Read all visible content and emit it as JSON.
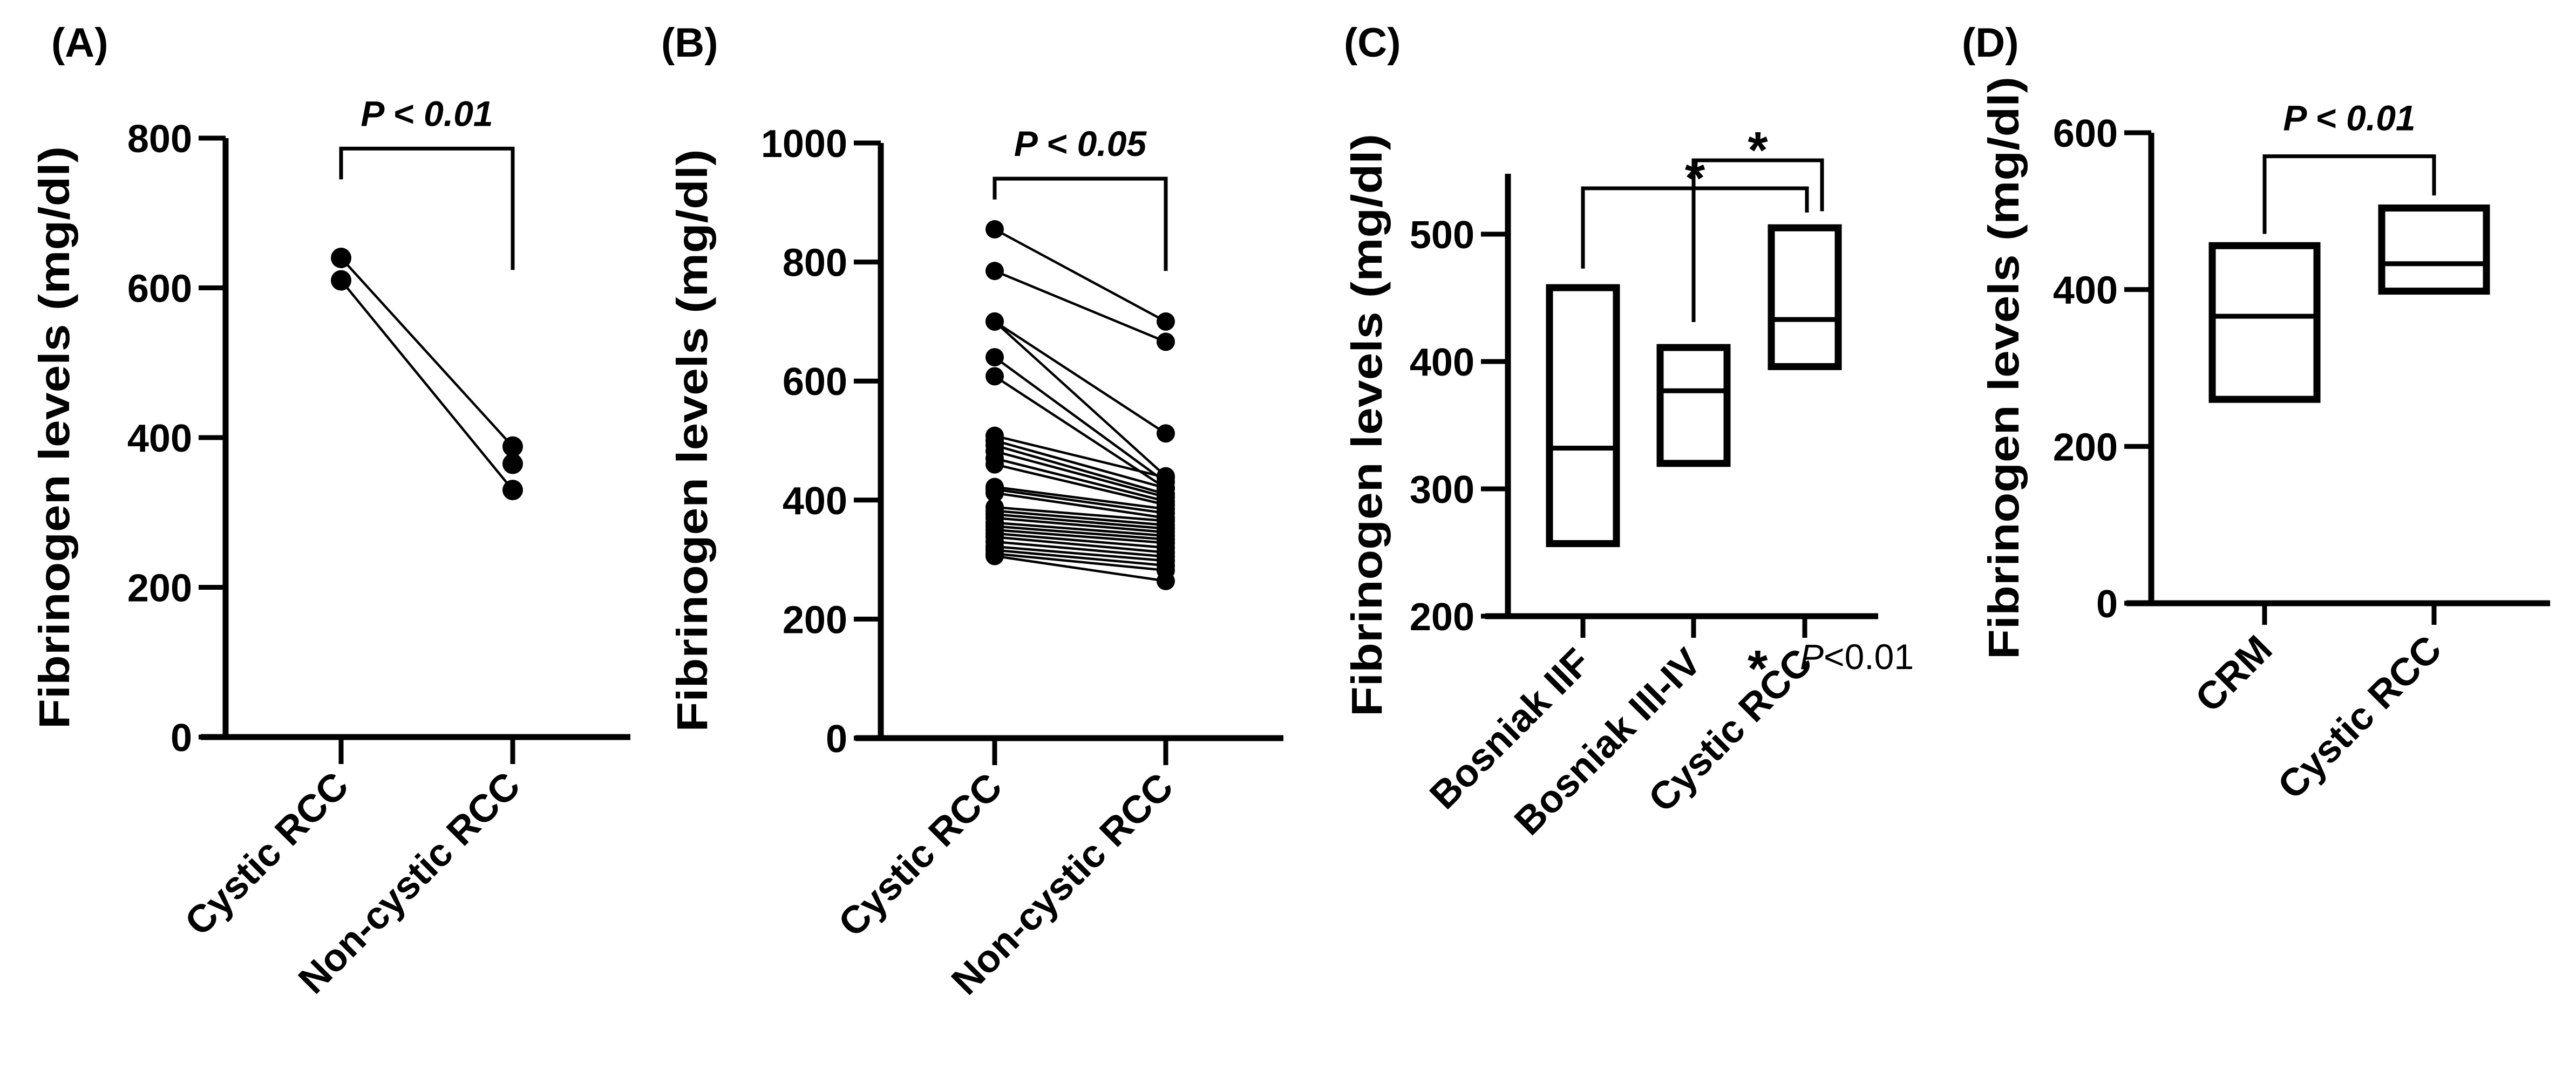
{
  "figure": {
    "background": "#ffffff",
    "ink": "#000000"
  },
  "chart_data": [
    {
      "panel": "(A)",
      "type": "scatter",
      "subtype": "paired-points",
      "title": "",
      "xlabel": "",
      "ylabel": "Fibrinogen levels (mg/dl)",
      "categories": [
        "Cystic RCC",
        "Non-cystic RCC"
      ],
      "ylim": [
        0,
        800
      ],
      "yticks": [
        0,
        200,
        400,
        600,
        800
      ],
      "grid": false,
      "pairs": [
        {
          "left": 640,
          "right": 388
        },
        {
          "left": 610,
          "right": 330
        }
      ],
      "unpaired_right": [
        365
      ],
      "significance": [
        {
          "from": 0,
          "to": 1,
          "label": "P  < 0.01",
          "bar_y": 786,
          "left_leg_end": 745,
          "right_leg_end": 624
        }
      ]
    },
    {
      "panel": "(B)",
      "type": "scatter",
      "subtype": "paired-points",
      "title": "",
      "xlabel": "",
      "ylabel": "Fibrinogen levels (mg/dl)",
      "categories": [
        "Cystic RCC",
        "Non-cystic RCC"
      ],
      "ylim": [
        0,
        1000
      ],
      "yticks": [
        0,
        200,
        400,
        600,
        800,
        1000
      ],
      "grid": false,
      "pairs": [
        {
          "left": 855,
          "right": 700
        },
        {
          "left": 785,
          "right": 666
        },
        {
          "left": 700,
          "right": 512
        },
        {
          "left": 700,
          "right": 440
        },
        {
          "left": 640,
          "right": 430
        },
        {
          "left": 608,
          "right": 420
        },
        {
          "left": 508,
          "right": 438
        },
        {
          "left": 500,
          "right": 420
        },
        {
          "left": 492,
          "right": 410
        },
        {
          "left": 482,
          "right": 405
        },
        {
          "left": 470,
          "right": 398
        },
        {
          "left": 460,
          "right": 392
        },
        {
          "left": 422,
          "right": 385
        },
        {
          "left": 418,
          "right": 378
        },
        {
          "left": 412,
          "right": 370
        },
        {
          "left": 388,
          "right": 365
        },
        {
          "left": 382,
          "right": 358
        },
        {
          "left": 376,
          "right": 352
        },
        {
          "left": 370,
          "right": 346
        },
        {
          "left": 362,
          "right": 340
        },
        {
          "left": 356,
          "right": 334
        },
        {
          "left": 350,
          "right": 328
        },
        {
          "left": 344,
          "right": 320
        },
        {
          "left": 338,
          "right": 312
        },
        {
          "left": 330,
          "right": 305
        },
        {
          "left": 322,
          "right": 298
        },
        {
          "left": 316,
          "right": 290
        },
        {
          "left": 310,
          "right": 282
        },
        {
          "left": 306,
          "right": 264
        }
      ],
      "significance": [
        {
          "from": 0,
          "to": 1,
          "label": "P  < 0.05",
          "bar_y": 940,
          "left_leg_end": 905,
          "right_leg_end": 785
        }
      ]
    },
    {
      "panel": "(C)",
      "type": "box",
      "subtype": "floating-bar-with-median",
      "title": "",
      "xlabel": "",
      "ylabel": "Fibrinogen levels (mg/dl)",
      "categories": [
        "Bosniak IIF",
        "Bosniak III-IV",
        "Cystic RCC"
      ],
      "ylim": [
        200,
        550
      ],
      "yticks": [
        200,
        300,
        400,
        500
      ],
      "grid": false,
      "boxes": [
        {
          "category": "Bosniak IIF",
          "low": 257,
          "median": 332,
          "high": 458
        },
        {
          "category": "Bosniak III-IV",
          "low": 320,
          "median": 377,
          "high": 411
        },
        {
          "category": "Cystic RCC",
          "low": 396,
          "median": 433,
          "high": 505
        }
      ],
      "significance": [
        {
          "from": 0,
          "to": 2,
          "label": "*",
          "bar_y": 536,
          "left_leg_end": 473,
          "right_leg_end": 517
        },
        {
          "from": 1,
          "to": 2,
          "label": "*",
          "bar_y": 558,
          "left_leg_end": 431,
          "right_leg_end": 518
        }
      ],
      "legend": {
        "symbol": "*",
        "p_italic": "P",
        "text": "<0.01",
        "placement": "bottom-right"
      }
    },
    {
      "panel": "(D)",
      "type": "box",
      "subtype": "floating-bar-with-median",
      "title": "",
      "xlabel": "",
      "ylabel": "Fibrinogen levels (mg/dl)",
      "categories": [
        "CRM",
        "Cystic RCC"
      ],
      "ylim": [
        0,
        600
      ],
      "yticks": [
        0,
        200,
        400,
        600
      ],
      "grid": false,
      "boxes": [
        {
          "category": "CRM",
          "low": 260,
          "median": 366,
          "high": 456
        },
        {
          "category": "Cystic RCC",
          "low": 398,
          "median": 433,
          "high": 504
        }
      ],
      "significance": [
        {
          "from": 0,
          "to": 1,
          "label": "P  < 0.01",
          "bar_y": 570,
          "left_leg_end": 471,
          "right_leg_end": 520
        }
      ]
    }
  ]
}
